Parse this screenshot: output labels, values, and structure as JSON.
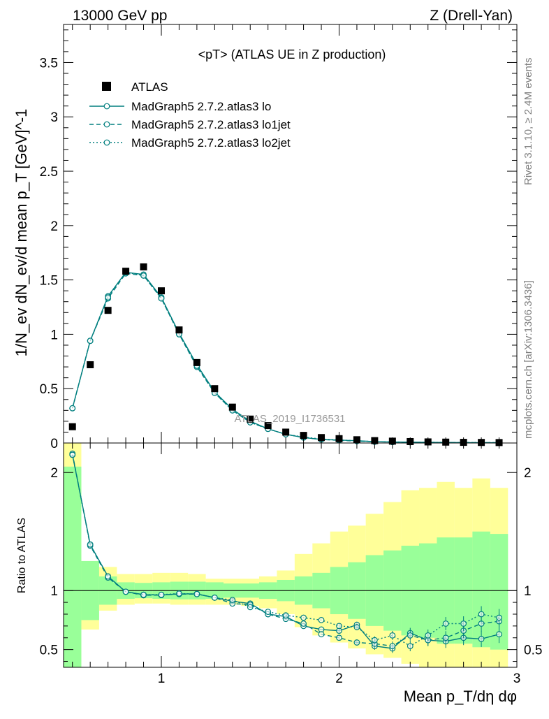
{
  "header": {
    "energy": "13000 GeV pp",
    "process": "Z (Drell-Yan)"
  },
  "side": {
    "rivet": "Rivet 3.1.10, ≥ 2.4M events",
    "mcplots": "mcplots.cern.ch [arXiv:1306.3436]"
  },
  "chart_data": {
    "type": "scatter",
    "title": "<pT> (ATLAS UE in Z production)",
    "watermark": "ATLAS_2019_I1736531",
    "xlabel": "Mean p_T/dη dφ",
    "ylabel": "1/N_ev dN_ev/d mean p_T [GeV]^-1",
    "ratio_ylabel": "Ratio to ATLAS",
    "xlim": [
      0.45,
      3.0
    ],
    "ylim": [
      0,
      3.85
    ],
    "ratio_ylim": [
      0.35,
      2.25
    ],
    "legend_position": "top-left",
    "colors": {
      "data": "#000000",
      "mc": "#007f7f",
      "band_inner": "#99ff99",
      "band_outer": "#ffff99"
    },
    "x": [
      0.5,
      0.6,
      0.7,
      0.8,
      0.9,
      1.0,
      1.1,
      1.2,
      1.3,
      1.4,
      1.5,
      1.6,
      1.7,
      1.8,
      1.9,
      2.0,
      2.1,
      2.2,
      2.3,
      2.4,
      2.5,
      2.6,
      2.7,
      2.8,
      2.9
    ],
    "atlas": [
      0.15,
      0.72,
      1.22,
      1.58,
      1.62,
      1.4,
      1.04,
      0.74,
      0.5,
      0.33,
      0.22,
      0.16,
      0.1,
      0.07,
      0.05,
      0.04,
      0.03,
      0.022,
      0.017,
      0.013,
      0.01,
      0.008,
      0.006,
      0.005,
      0.004
    ],
    "series": [
      {
        "name": "MadGraph5 2.7.2.atlas3 lo",
        "dash": "solid",
        "values": [
          0.32,
          0.94,
          1.35,
          1.57,
          1.55,
          1.34,
          1.01,
          0.72,
          0.47,
          0.31,
          0.2,
          0.13,
          0.08,
          0.05,
          0.033,
          0.027,
          0.021,
          0.012,
          0.009,
          0.008,
          0.006,
          0.005,
          0.0036,
          0.003,
          0.0025
        ],
        "ratio": [
          2.15,
          1.39,
          1.12,
          0.99,
          0.965,
          0.962,
          0.972,
          0.972,
          0.94,
          0.91,
          0.89,
          0.8,
          0.78,
          0.7,
          0.67,
          0.66,
          0.71,
          0.53,
          0.51,
          0.64,
          0.58,
          0.57,
          0.6,
          0.59,
          0.63
        ]
      },
      {
        "name": "MadGraph5 2.7.2.atlas3 lo1jet",
        "dash": "dashed",
        "values": [
          0.32,
          0.94,
          1.33,
          1.56,
          1.54,
          1.33,
          1.0,
          0.7,
          0.46,
          0.3,
          0.19,
          0.13,
          0.08,
          0.05,
          0.032,
          0.024,
          0.017,
          0.012,
          0.009,
          0.007,
          0.006,
          0.005,
          0.004,
          0.0035,
          0.003
        ],
        "ratio": [
          2.16,
          1.38,
          1.11,
          0.99,
          0.96,
          0.962,
          0.97,
          0.97,
          0.94,
          0.89,
          0.88,
          0.8,
          0.76,
          0.72,
          0.63,
          0.6,
          0.56,
          0.55,
          0.53,
          0.62,
          0.58,
          0.6,
          0.66,
          0.72,
          0.74
        ]
      },
      {
        "name": "MadGraph5 2.7.2.atlas3 lo2jet",
        "dash": "dotted",
        "values": [
          0.32,
          0.94,
          1.34,
          1.57,
          1.54,
          1.33,
          1.0,
          0.71,
          0.46,
          0.3,
          0.19,
          0.13,
          0.08,
          0.055,
          0.036,
          0.028,
          0.021,
          0.012,
          0.01,
          0.007,
          0.006,
          0.006,
          0.004,
          0.004,
          0.003
        ],
        "ratio": [
          2.15,
          1.39,
          1.12,
          0.99,
          0.965,
          0.965,
          0.975,
          0.97,
          0.94,
          0.92,
          0.86,
          0.82,
          0.79,
          0.77,
          0.75,
          0.7,
          0.69,
          0.58,
          0.62,
          0.53,
          0.62,
          0.72,
          0.72,
          0.8,
          0.77
        ]
      }
    ],
    "band_inner_hi": [
      2.05,
      1.25,
      1.12,
      1.07,
      1.065,
      1.07,
      1.075,
      1.075,
      1.07,
      1.06,
      1.06,
      1.07,
      1.09,
      1.12,
      1.15,
      1.2,
      1.24,
      1.3,
      1.34,
      1.38,
      1.4,
      1.45,
      1.45,
      1.5,
      1.48
    ],
    "band_inner_lo": [
      0.35,
      0.75,
      0.88,
      0.93,
      0.935,
      0.93,
      0.925,
      0.925,
      0.93,
      0.94,
      0.94,
      0.93,
      0.91,
      0.88,
      0.85,
      0.8,
      0.76,
      0.7,
      0.66,
      0.62,
      0.6,
      0.55,
      0.55,
      0.52,
      0.5
    ],
    "band_outer_hi": [
      2.25,
      1.25,
      1.2,
      1.14,
      1.14,
      1.15,
      1.15,
      1.14,
      1.1,
      1.1,
      1.1,
      1.12,
      1.17,
      1.31,
      1.4,
      1.5,
      1.55,
      1.65,
      1.75,
      1.85,
      1.87,
      1.92,
      1.87,
      1.95,
      1.87
    ],
    "band_outer_lo": [
      0.35,
      0.67,
      0.83,
      0.88,
      0.89,
      0.89,
      0.88,
      0.88,
      0.88,
      0.88,
      0.87,
      0.85,
      0.8,
      0.69,
      0.62,
      0.56,
      0.51,
      0.46,
      0.43,
      0.38,
      0.35,
      0.35,
      0.35,
      0.35,
      0.35
    ],
    "xticks": [
      1,
      2,
      3
    ],
    "yticks": [
      0,
      0.5,
      1,
      1.5,
      2,
      2.5,
      3,
      3.5
    ],
    "ratio_yticks": [
      0.5,
      1,
      2
    ],
    "xtick_labels": [
      "1",
      "2",
      "3"
    ],
    "ytick_labels": [
      "0",
      "0.5",
      "1",
      "1.5",
      "2",
      "2.5",
      "3",
      "3.5"
    ],
    "ratio_ytick_labels": [
      "0.5",
      "1",
      "2"
    ]
  }
}
